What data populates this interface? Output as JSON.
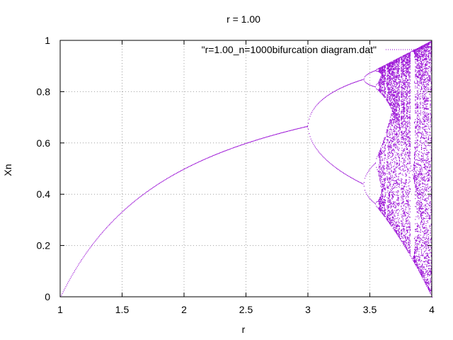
{
  "chart_data": {
    "type": "scatter",
    "title": "r = 1.00",
    "xlabel": "r",
    "ylabel": "Xn",
    "xlim": [
      1,
      4
    ],
    "ylim": [
      0,
      1
    ],
    "xticks": [
      1,
      1.5,
      2,
      2.5,
      3,
      3.5,
      4
    ],
    "xtick_labels": [
      "1",
      "1.5",
      "2",
      "2.5",
      "3",
      "3.5",
      "4"
    ],
    "yticks": [
      0,
      0.2,
      0.4,
      0.6,
      0.8,
      1
    ],
    "ytick_labels": [
      "0",
      "0.2",
      "0.4",
      "0.6",
      "0.8",
      "1"
    ],
    "grid": true,
    "legend_position": "top-center",
    "series": [
      {
        "name": "\"r=1.00_n=1000bifurcation diagram.dat\"",
        "color": "#9400d3",
        "description_points": {
          "stable_branch": [
            [
              1.0,
              0.0
            ],
            [
              1.5,
              0.333
            ],
            [
              2.0,
              0.5
            ],
            [
              2.5,
              0.6
            ],
            [
              3.0,
              0.667
            ]
          ],
          "period2_at_r3.45": [
            [
              3.45,
              0.44
            ],
            [
              3.45,
              0.85
            ]
          ],
          "chaos_onset_r": 3.57,
          "chaos_range_at_r4": [
            0.0,
            1.0
          ]
        }
      }
    ]
  }
}
